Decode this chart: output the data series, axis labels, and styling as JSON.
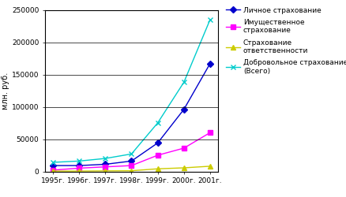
{
  "years": [
    "1995г.",
    "1996г.",
    "1997г.",
    "1998г.",
    "1999г.",
    "2000г.",
    "2001г."
  ],
  "series": [
    {
      "label": "Личное страхование",
      "values": [
        9000,
        9000,
        11000,
        16000,
        44000,
        96000,
        167000
      ],
      "color": "#0000CC",
      "marker": "D",
      "markersize": 4
    },
    {
      "label": "Имущественное\nстрахование",
      "values": [
        2000,
        5000,
        7000,
        9000,
        25000,
        36000,
        60000
      ],
      "color": "#FF00FF",
      "marker": "s",
      "markersize": 4
    },
    {
      "label": "Страхование\nответственности",
      "values": [
        500,
        500,
        800,
        1000,
        4000,
        5500,
        8000
      ],
      "color": "#CCCC00",
      "marker": "^",
      "markersize": 4
    },
    {
      "label": "Добровольное страхование\n(Всего)",
      "values": [
        14000,
        16000,
        20000,
        27000,
        75000,
        138000,
        235000
      ],
      "color": "#00CCCC",
      "marker": "x",
      "markersize": 5
    }
  ],
  "ylabel": "млн. руб.",
  "ylim": [
    0,
    250000
  ],
  "yticks": [
    0,
    50000,
    100000,
    150000,
    200000,
    250000
  ],
  "background_color": "#FFFFFF",
  "grid_color": "#000000",
  "linewidth": 1.0
}
